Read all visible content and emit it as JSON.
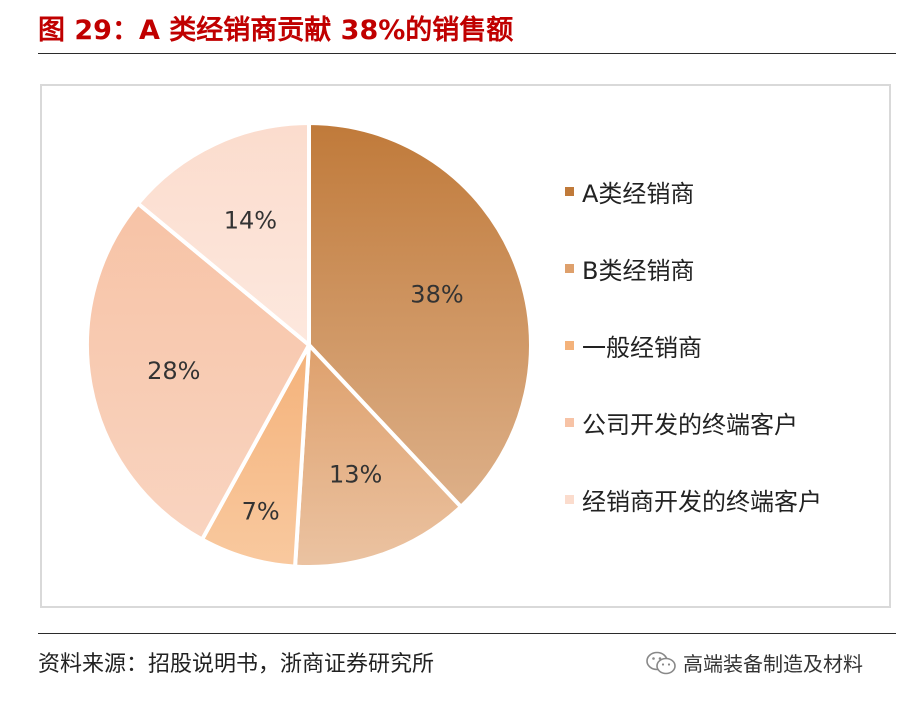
{
  "header": {
    "title": "图 29：A 类经销商贡献 38%的销售额"
  },
  "chart_data": {
    "type": "pie",
    "categories": [
      "A类经销商",
      "B类经销商",
      "一般经销商",
      "公司开发的终端客户",
      "经销商开发的终端客户"
    ],
    "values": [
      38,
      13,
      7,
      28,
      14
    ],
    "labels": [
      "38%",
      "13%",
      "7%",
      "28%",
      "14%"
    ],
    "colors": [
      "#c07a3a",
      "#dea06c",
      "#f4b27a",
      "#f7c3a6",
      "#fbdccd"
    ],
    "gradient_ends": [
      "#ddb089",
      "#ebc3a2",
      "#f9c99f",
      "#f9d4c0",
      "#fde8de"
    ],
    "legend_position": "right"
  },
  "footer": {
    "source": "资料来源：招股说明书，浙商证券研究所",
    "watermark": "高端装备制造及材料",
    "watermark_icon": "wechat-icon"
  }
}
